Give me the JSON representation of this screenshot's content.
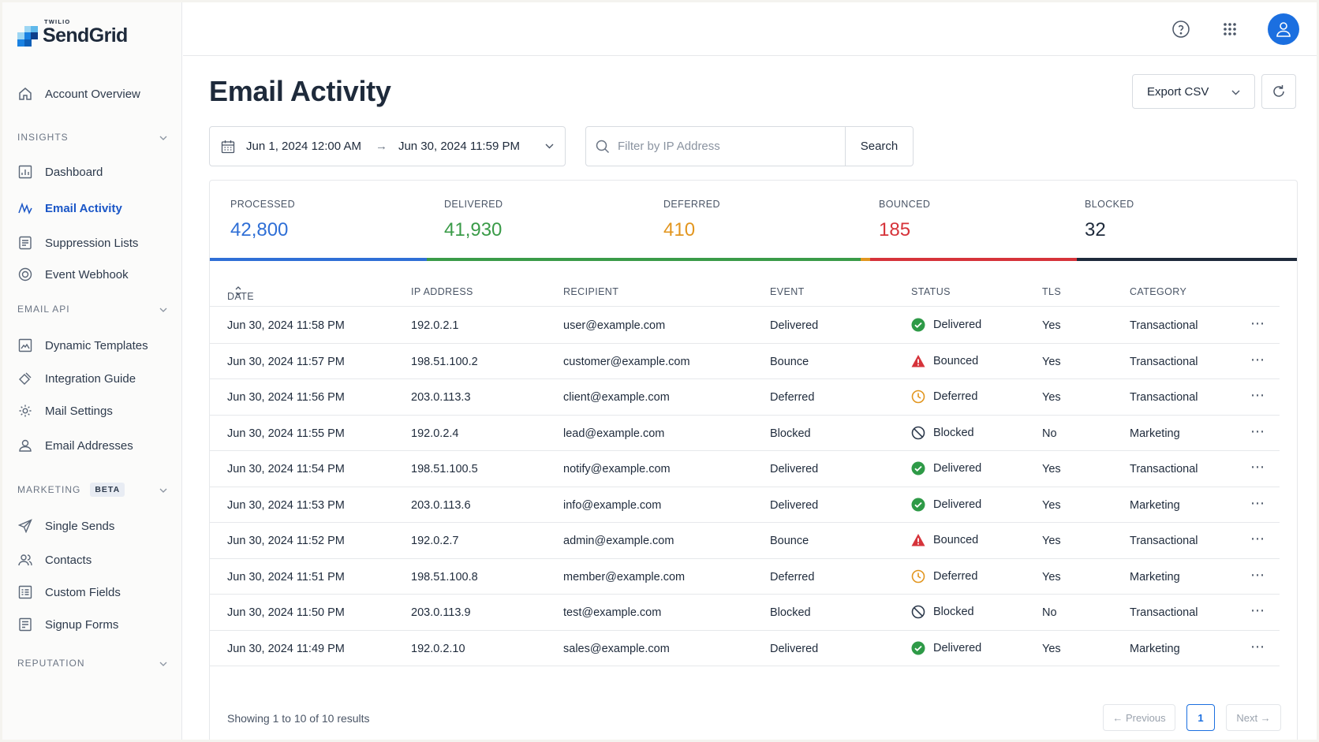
{
  "brand": {
    "small": "TWILIO",
    "name": "SendGrid"
  },
  "sidebar": {
    "account_overview": "Account Overview",
    "sections": {
      "insights": "INSIGHTS",
      "email_api": "EMAIL API",
      "marketing": "MARKETING",
      "marketing_badge": "BETA",
      "reputation": "REPUTATION"
    },
    "insights_items": [
      {
        "label": "Dashboard",
        "icon": "chart-icon"
      },
      {
        "label": "Email Activity",
        "icon": "activity-icon",
        "active": true
      },
      {
        "label": "Suppression Lists",
        "icon": "suppression-icon"
      },
      {
        "label": "Event Webhook",
        "icon": "webhook-icon"
      }
    ],
    "email_api_items": [
      {
        "label": "Dynamic Templates",
        "icon": "template-icon"
      },
      {
        "label": "Integration Guide",
        "icon": "guide-icon"
      },
      {
        "label": "Mail Settings",
        "icon": "gear-icon"
      },
      {
        "label": "Email Addresses",
        "icon": "users-icon"
      }
    ],
    "marketing_items": [
      {
        "label": "Single Sends",
        "icon": "send-icon"
      },
      {
        "label": "Contacts",
        "icon": "contacts-icon"
      },
      {
        "label": "Custom Fields",
        "icon": "fields-icon"
      },
      {
        "label": "Signup Forms",
        "icon": "form-icon"
      }
    ]
  },
  "header": {
    "icons": [
      "help-icon",
      "apps-grid-icon",
      "user-avatar-icon"
    ]
  },
  "page": {
    "title": "Email Activity",
    "export_label": "Export CSV",
    "date_start": "Jun 1, 2024 12:00 AM",
    "date_end": "Jun 30, 2024 11:59 PM",
    "filter_placeholder": "Filter by IP Address",
    "search_label": "Search"
  },
  "stats": [
    {
      "label": "PROCESSED",
      "value": "42,800",
      "color": "#2f6fd6"
    },
    {
      "label": "DELIVERED",
      "value": "41,930",
      "color": "#3a9b48"
    },
    {
      "label": "DEFERRED",
      "value": "410",
      "color": "#e2961f"
    },
    {
      "label": "BOUNCED",
      "value": "185",
      "color": "#d6333a"
    },
    {
      "label": "BLOCKED",
      "value": "32",
      "color": "#1e2a3b"
    }
  ],
  "table": {
    "columns": [
      "DATE",
      "IP ADDRESS",
      "RECIPIENT",
      "EVENT",
      "STATUS",
      "TLS",
      "CATEGORY"
    ],
    "rows": [
      {
        "date": "Jun 30, 2024 11:58 PM",
        "ip": "192.0.2.1",
        "recipient": "user@example.com",
        "event": "Delivered",
        "status": "Delivered",
        "tls": "Yes",
        "category": "Transactional"
      },
      {
        "date": "Jun 30, 2024 11:57 PM",
        "ip": "198.51.100.2",
        "recipient": "customer@example.com",
        "event": "Bounce",
        "status": "Bounced",
        "tls": "Yes",
        "category": "Transactional"
      },
      {
        "date": "Jun 30, 2024 11:56 PM",
        "ip": "203.0.113.3",
        "recipient": "client@example.com",
        "event": "Deferred",
        "status": "Deferred",
        "tls": "Yes",
        "category": "Transactional"
      },
      {
        "date": "Jun 30, 2024 11:55 PM",
        "ip": "192.0.2.4",
        "recipient": "lead@example.com",
        "event": "Blocked",
        "status": "Blocked",
        "tls": "No",
        "category": "Marketing"
      },
      {
        "date": "Jun 30, 2024 11:54 PM",
        "ip": "198.51.100.5",
        "recipient": "notify@example.com",
        "event": "Delivered",
        "status": "Delivered",
        "tls": "Yes",
        "category": "Transactional"
      },
      {
        "date": "Jun 30, 2024 11:53 PM",
        "ip": "203.0.113.6",
        "recipient": "info@example.com",
        "event": "Delivered",
        "status": "Delivered",
        "tls": "Yes",
        "category": "Marketing"
      },
      {
        "date": "Jun 30, 2024 11:52 PM",
        "ip": "192.0.2.7",
        "recipient": "admin@example.com",
        "event": "Bounce",
        "status": "Bounced",
        "tls": "Yes",
        "category": "Transactional"
      },
      {
        "date": "Jun 30, 2024 11:51 PM",
        "ip": "198.51.100.8",
        "recipient": "member@example.com",
        "event": "Deferred",
        "status": "Deferred",
        "tls": "Yes",
        "category": "Marketing"
      },
      {
        "date": "Jun 30, 2024 11:50 PM",
        "ip": "203.0.113.9",
        "recipient": "test@example.com",
        "event": "Blocked",
        "status": "Blocked",
        "tls": "No",
        "category": "Transactional"
      },
      {
        "date": "Jun 30, 2024 11:49 PM",
        "ip": "192.0.2.10",
        "recipient": "sales@example.com",
        "event": "Delivered",
        "status": "Delivered",
        "tls": "Yes",
        "category": "Marketing"
      }
    ]
  },
  "pagination": {
    "summary": "Showing 1 to 10 of 10 results",
    "previous": "← Previous",
    "current": "1",
    "next": "Next →"
  }
}
